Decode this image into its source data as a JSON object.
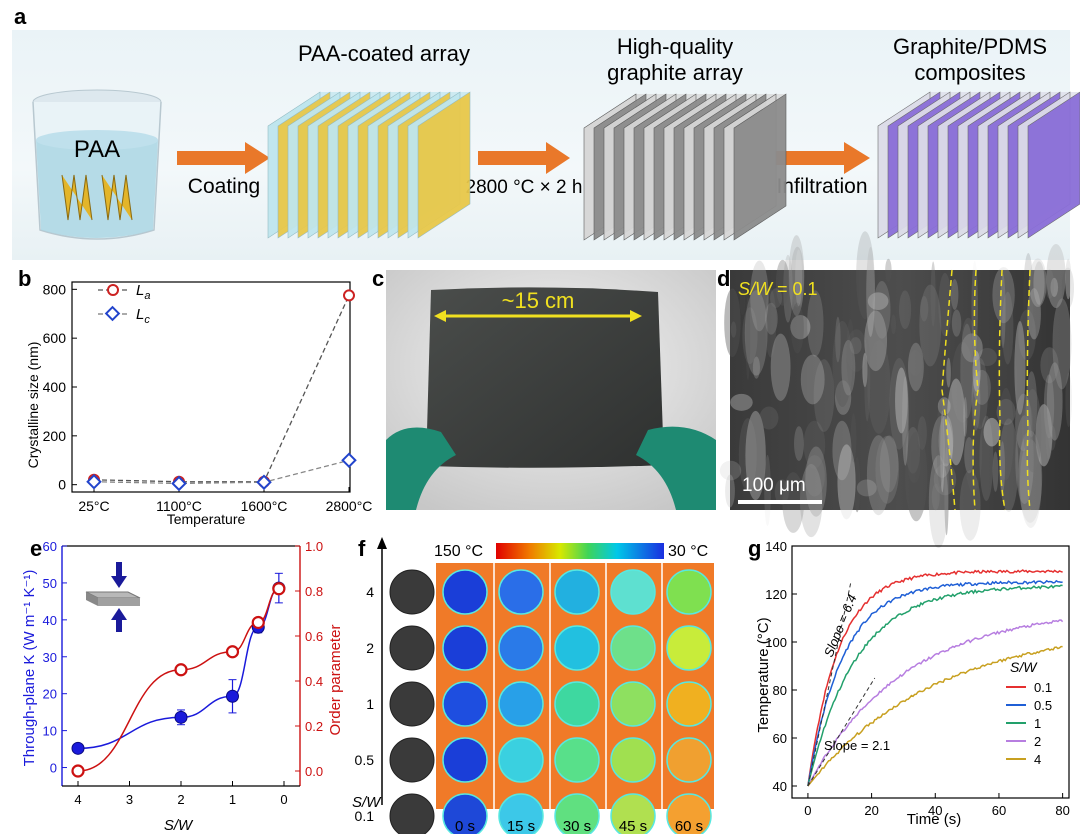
{
  "panel_letters": {
    "a": "a",
    "b": "b",
    "c": "c",
    "d": "d",
    "e": "e",
    "f": "f",
    "g": "g"
  },
  "panel_a": {
    "beaker_label": "PAA",
    "stage1_title": "PAA-coated array",
    "stage2_title_line1": "High-quality",
    "stage2_title_line2": "graphite  array",
    "stage3_title_line1": "Graphite/PDMS",
    "stage3_title_line2": "composites",
    "arrow1_label": "Coating",
    "arrow2_label": "2800 °C × 2 h",
    "arrow3_label": "Infiltration",
    "arrow_color": "#e9782a"
  },
  "panel_b": {
    "ylabel": "Crystalline size (nm)",
    "xlabel": "Temperature",
    "legend_La": "L",
    "legend_La_sub": "a",
    "legend_Lc": "L",
    "legend_Lc_sub": "c"
  },
  "panel_c": {
    "dimension_label": "~15 cm"
  },
  "panel_d": {
    "sw_label": "S/W",
    "sw_value": " = 0.1",
    "scalebar": "100 μm"
  },
  "panel_e": {
    "ylabel_left": "Through-plane K (W m⁻¹ K⁻¹)",
    "ylabel_right": "Order parameter",
    "xlabel": "S/W"
  },
  "panel_f": {
    "colorbar_max": "150 °C",
    "colorbar_min": "30 °C",
    "sw_axis_label": "S/W",
    "rows": [
      "4",
      "2",
      "1",
      "0.5",
      "0.1"
    ],
    "times": [
      "0 s",
      "15 s",
      "30 s",
      "45 s",
      "60 s"
    ]
  },
  "panel_g": {
    "ylabel": "Temperature (°C)",
    "xlabel": "Time (s)",
    "legend_title": "S/W",
    "slope_high": "Slope = 6.4",
    "slope_low": "Slope = 2.1"
  },
  "chart_data": [
    {
      "id": "b",
      "type": "scatter",
      "categories": [
        "25°C",
        "1100°C",
        "1600°C",
        "2800°C"
      ],
      "series": [
        {
          "name": "La",
          "values": [
            20,
            12,
            12,
            775
          ],
          "color": "#cc2222",
          "marker": "circle"
        },
        {
          "name": "Lc",
          "values": [
            12,
            5,
            10,
            100
          ],
          "color": "#2244cc",
          "marker": "diamond"
        }
      ],
      "ylabel": "Crystalline size (nm)",
      "xlabel": "Temperature",
      "ylim": [
        -30,
        830
      ],
      "yticks": [
        0,
        200,
        400,
        600,
        800
      ]
    },
    {
      "id": "e",
      "type": "line",
      "x": [
        4,
        2,
        1,
        0.5,
        0.1
      ],
      "x_reversed": true,
      "xticks": [
        4,
        3,
        2,
        1,
        0
      ],
      "series": [
        {
          "name": "Through-plane K",
          "axis": "left",
          "values": [
            5.2,
            13.6,
            19.3,
            38,
            48.6
          ],
          "errors": [
            0.8,
            2,
            4.5,
            1.5,
            4
          ],
          "color": "#1a1adb"
        },
        {
          "name": "Order parameter",
          "axis": "right",
          "values": [
            0,
            0.45,
            0.53,
            0.66,
            0.81
          ],
          "color": "#cc1111"
        }
      ],
      "ylim_left": [
        -5,
        60
      ],
      "yticks_left": [
        0,
        10,
        20,
        30,
        40,
        50,
        60
      ],
      "ylim_right": [
        -0.0667,
        1.0
      ],
      "yticks_right": [
        0.0,
        0.2,
        0.4,
        0.6,
        0.8,
        1.0
      ]
    },
    {
      "id": "g",
      "type": "line",
      "xlim": [
        -5,
        82
      ],
      "xticks": [
        0,
        20,
        40,
        60,
        80
      ],
      "ylim": [
        35,
        140
      ],
      "yticks": [
        40,
        60,
        80,
        100,
        120,
        140
      ],
      "series": [
        {
          "name": "0.1",
          "final": 129.5,
          "tau": 9.5,
          "color": "#e53030"
        },
        {
          "name": "0.5",
          "final": 125,
          "tau": 11,
          "color": "#1f5fd6"
        },
        {
          "name": "1",
          "final": 123.5,
          "tau": 15,
          "color": "#22a06b"
        },
        {
          "name": "2",
          "final": 114,
          "tau": 30,
          "color": "#b77ee0"
        },
        {
          "name": "4",
          "final": 107,
          "tau": 40,
          "color": "#c8a020"
        }
      ],
      "start": 40
    }
  ]
}
